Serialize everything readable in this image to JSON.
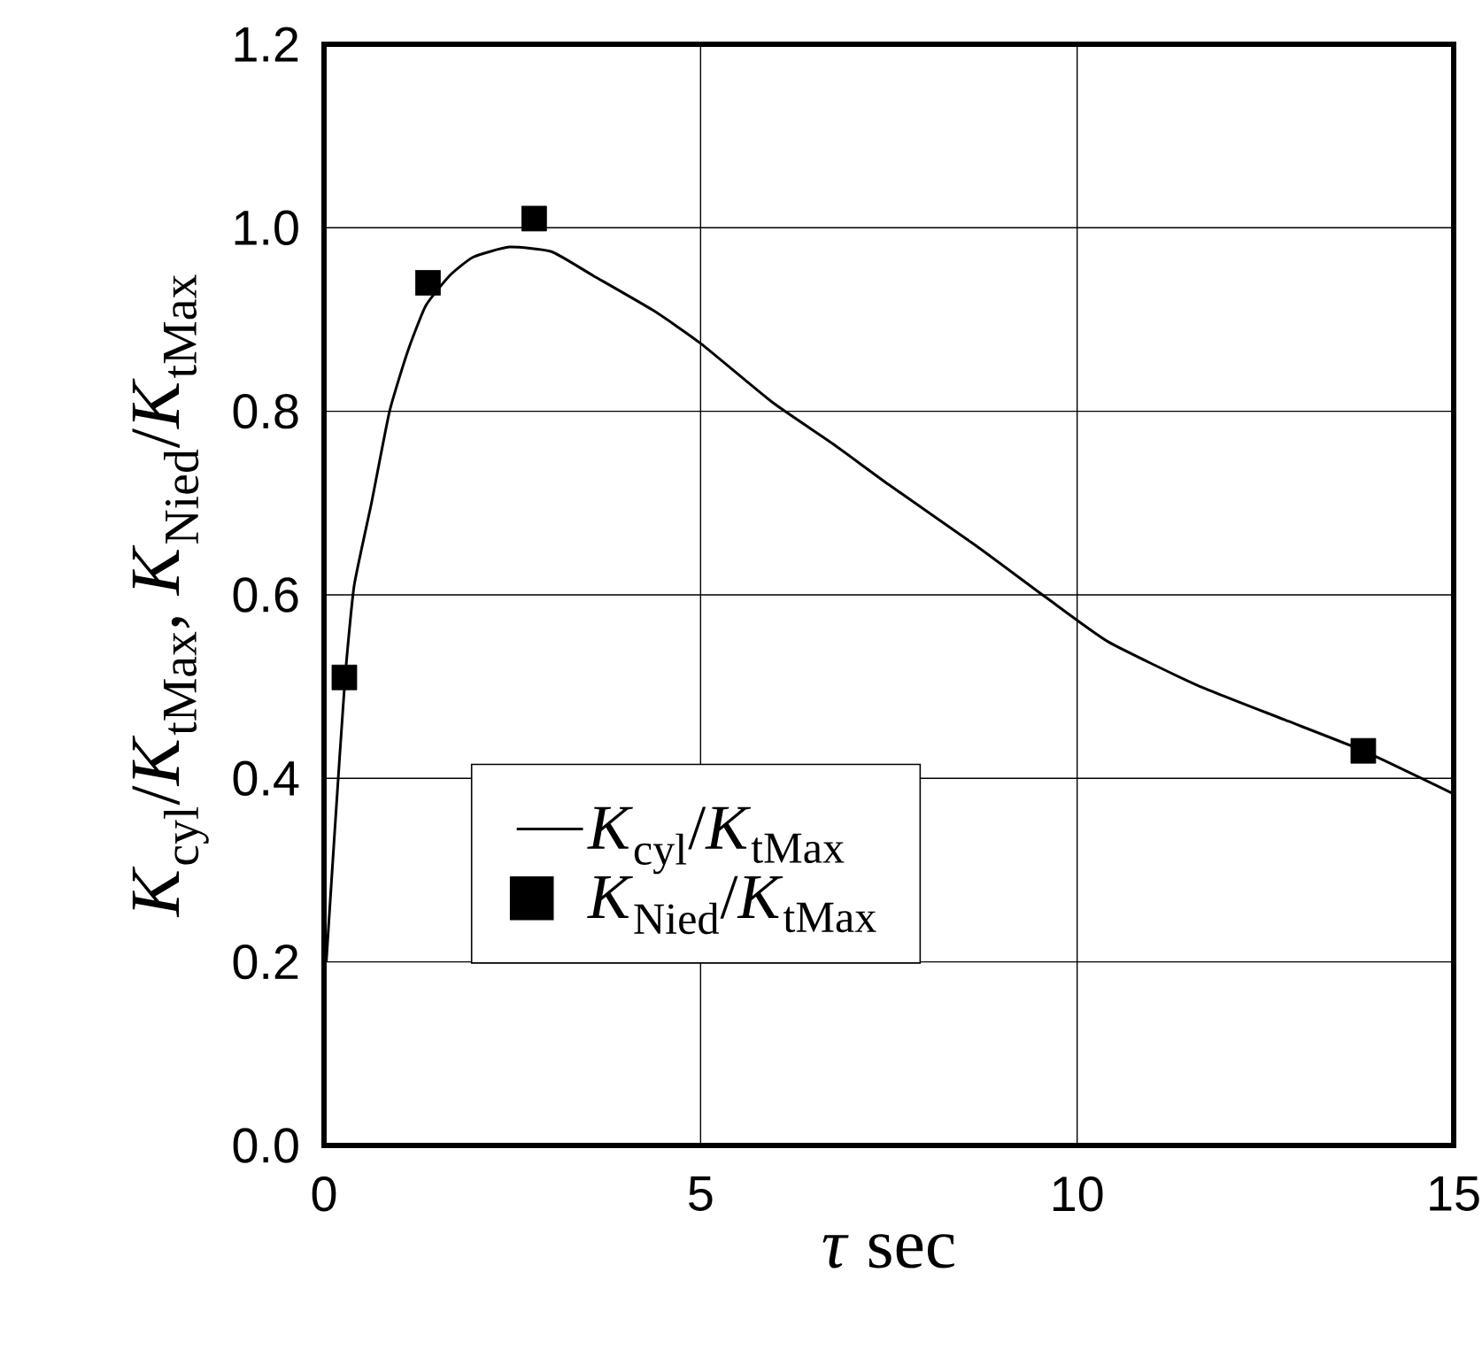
{
  "chart_data": {
    "type": "line",
    "xlabel": "*τ* sec",
    "ylabel": "*K*$_{cyl}$/*K*$_{tMax}$, *K*$_{Nied}$/*K*$_{tMax}$",
    "xlim": [
      0,
      15
    ],
    "xticks": [
      0,
      5,
      10,
      15
    ],
    "ylim": [
      0,
      1.2
    ],
    "yticks": [
      {
        "value": 0,
        "label": "0.0"
      },
      0.2,
      0.4,
      0.6,
      0.8,
      {
        "value": 1,
        "label": "1.0"
      },
      1.2
    ],
    "grid": true,
    "legend": "center",
    "series": [
      {
        "name": "*K*$_{cyl}$/*K*$_{tMax}$",
        "color": "#000000",
        "marker": "none",
        "line_style": "solid",
        "x": [
          0.03,
          0.14,
          0.28,
          0.4,
          0.63,
          0.87,
          1.11,
          1.35,
          1.67,
          1.98,
          2.46,
          3.02,
          3.57,
          4.37,
          5.0,
          5.95,
          6.75,
          7.5,
          8.65,
          9.59,
          10.41,
          11.58,
          12.75,
          13.8,
          15.0
        ],
        "values": [
          0.2,
          0.34,
          0.51,
          0.61,
          0.7,
          0.8,
          0.865,
          0.915,
          0.948,
          0.968,
          0.979,
          0.974,
          0.948,
          0.91,
          0.874,
          0.81,
          0.765,
          0.72,
          0.654,
          0.597,
          0.549,
          0.502,
          0.464,
          0.43,
          0.383
        ]
      },
      {
        "name": "*K*$_{Nied}$/*K*$_{tMax}$",
        "type": "scatter",
        "color": "#000000",
        "marker": "square",
        "x": [
          0.27,
          1.38,
          2.79,
          13.8
        ],
        "values": [
          0.51,
          0.94,
          1.01,
          0.43
        ]
      }
    ]
  }
}
